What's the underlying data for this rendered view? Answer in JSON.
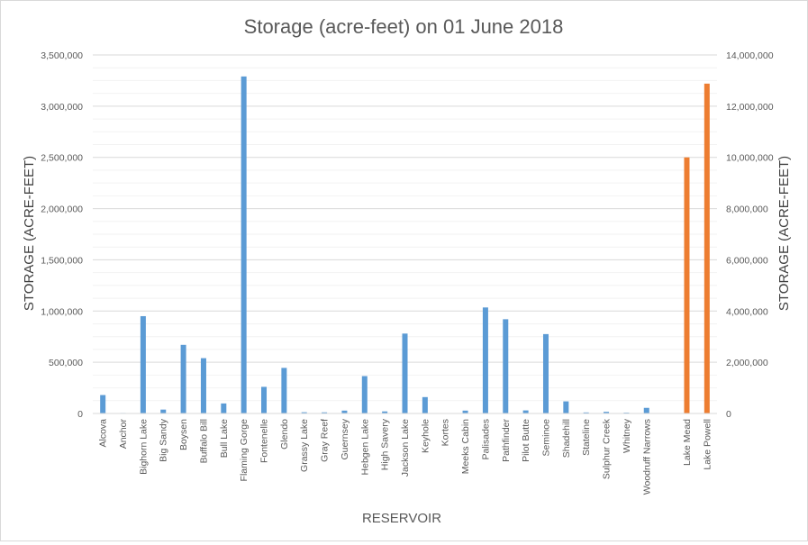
{
  "chart_data": {
    "type": "bar",
    "title": "Storage (acre-feet) on 01 June 2018",
    "xlabel": "RESERVOIR",
    "ylabel": "STORAGE (ACRE-FEET)",
    "y2label": "STORAGE (ACRE-FEET)",
    "ylim": [
      0,
      3500000
    ],
    "y2lim": [
      0,
      14000000
    ],
    "yticks": [
      "0",
      "500,000",
      "1,000,000",
      "1,500,000",
      "2,000,000",
      "2,500,000",
      "3,000,000",
      "3,500,000"
    ],
    "y2ticks": [
      "0",
      "2,000,000",
      "4,000,000",
      "6,000,000",
      "8,000,000",
      "10,000,000",
      "12,000,000",
      "14,000,000"
    ],
    "grid": true,
    "categories": [
      "Alcova",
      "Anchor",
      "Bighorn Lake",
      "Big Sandy",
      "Boysen",
      "Buffalo Bill",
      "Bull Lake",
      "Flaming Gorge",
      "Fontenelle",
      "Glendo",
      "Grassy Lake",
      "Gray Reef",
      "Guernsey",
      "Hebgen Lake",
      "High Savery",
      "Jackson Lake",
      "Keyhole",
      "Kortes",
      "Meeks Cabin",
      "Palisades",
      "Pathfinder",
      "Pilot Butte",
      "Seminoe",
      "Shadehill",
      "Stateline",
      "Sulphur Creek",
      "Whitney",
      "Woodruff Narrows",
      "",
      "Lake Mead",
      "Lake Powell"
    ],
    "series": [
      {
        "axis": "left",
        "color": "#5b9bd5",
        "values": [
          180000,
          5000,
          950000,
          38000,
          670000,
          540000,
          98000,
          3290000,
          260000,
          445000,
          12000,
          11000,
          28000,
          365000,
          20000,
          780000,
          160000,
          4000,
          28000,
          1035000,
          920000,
          30000,
          775000,
          118000,
          10000,
          16000,
          8000,
          55000,
          null,
          null,
          null
        ]
      },
      {
        "axis": "right",
        "color": "#ed7d31",
        "values": [
          null,
          null,
          null,
          null,
          null,
          null,
          null,
          null,
          null,
          null,
          null,
          null,
          null,
          null,
          null,
          null,
          null,
          null,
          null,
          null,
          null,
          null,
          null,
          null,
          null,
          null,
          null,
          null,
          null,
          10000000,
          12880000
        ]
      }
    ]
  }
}
